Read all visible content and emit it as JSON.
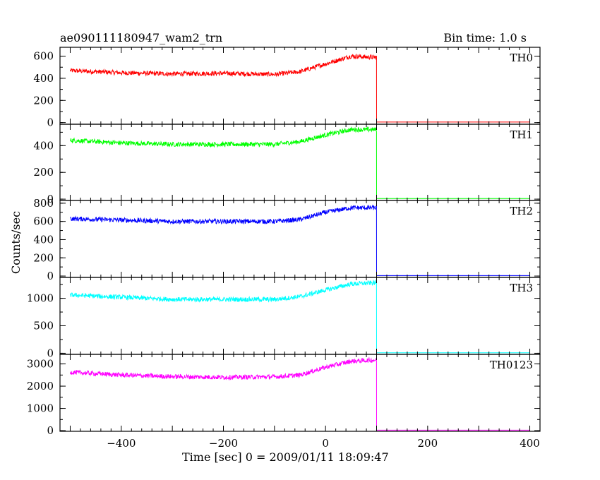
{
  "chart_data": {
    "type": "line",
    "title": "ae090111180947_wam2_trn",
    "subtitle": "Bin time: 1.0 s",
    "xlabel": "Time [sec] 0 = 2009/01/11 18:09:47",
    "ylabel": "Counts/sec",
    "xlim": [
      -520,
      420
    ],
    "x_ticks": [
      -400,
      -200,
      0,
      200,
      400
    ],
    "grid": false,
    "panels": [
      {
        "name": "TH0",
        "color": "#ff0000",
        "ylim": [
          -15,
          680
        ],
        "y_ticks": [
          0,
          200,
          400,
          600
        ],
        "x": [
          -500,
          -400,
          -300,
          -200,
          -100,
          -50,
          0,
          50,
          90,
          100,
          101,
          400
        ],
        "values": [
          470,
          450,
          440,
          445,
          435,
          460,
          530,
          600,
          590,
          590,
          5,
          5
        ]
      },
      {
        "name": "TH1",
        "color": "#00ff00",
        "ylim": [
          -10,
          560
        ],
        "y_ticks": [
          0,
          200,
          400
        ],
        "x": [
          -500,
          -400,
          -300,
          -200,
          -100,
          -50,
          0,
          50,
          90,
          100,
          101,
          400
        ],
        "values": [
          440,
          420,
          410,
          410,
          410,
          430,
          480,
          520,
          520,
          520,
          5,
          5
        ]
      },
      {
        "name": "TH2",
        "color": "#0000ff",
        "ylim": [
          -15,
          830
        ],
        "y_ticks": [
          0,
          200,
          400,
          600,
          800
        ],
        "x": [
          -500,
          -400,
          -300,
          -200,
          -100,
          -50,
          0,
          50,
          90,
          100,
          101,
          400
        ],
        "values": [
          630,
          615,
          600,
          600,
          600,
          620,
          700,
          750,
          750,
          750,
          5,
          5
        ]
      },
      {
        "name": "TH3",
        "color": "#00ffff",
        "ylim": [
          -20,
          1380
        ],
        "y_ticks": [
          0,
          500,
          1000
        ],
        "x": [
          -500,
          -400,
          -300,
          -200,
          -100,
          -50,
          0,
          50,
          90,
          100,
          101,
          400
        ],
        "values": [
          1060,
          1020,
          980,
          980,
          980,
          1030,
          1150,
          1260,
          1280,
          1280,
          8,
          8
        ]
      },
      {
        "name": "TH0123",
        "color": "#ff00ff",
        "ylim": [
          -30,
          3430
        ],
        "y_ticks": [
          0,
          1000,
          2000,
          3000
        ],
        "x": [
          -500,
          -400,
          -300,
          -200,
          -100,
          -50,
          0,
          50,
          90,
          100,
          101,
          400
        ],
        "values": [
          2630,
          2500,
          2430,
          2400,
          2420,
          2500,
          2850,
          3120,
          3170,
          3170,
          20,
          20
        ]
      }
    ]
  }
}
